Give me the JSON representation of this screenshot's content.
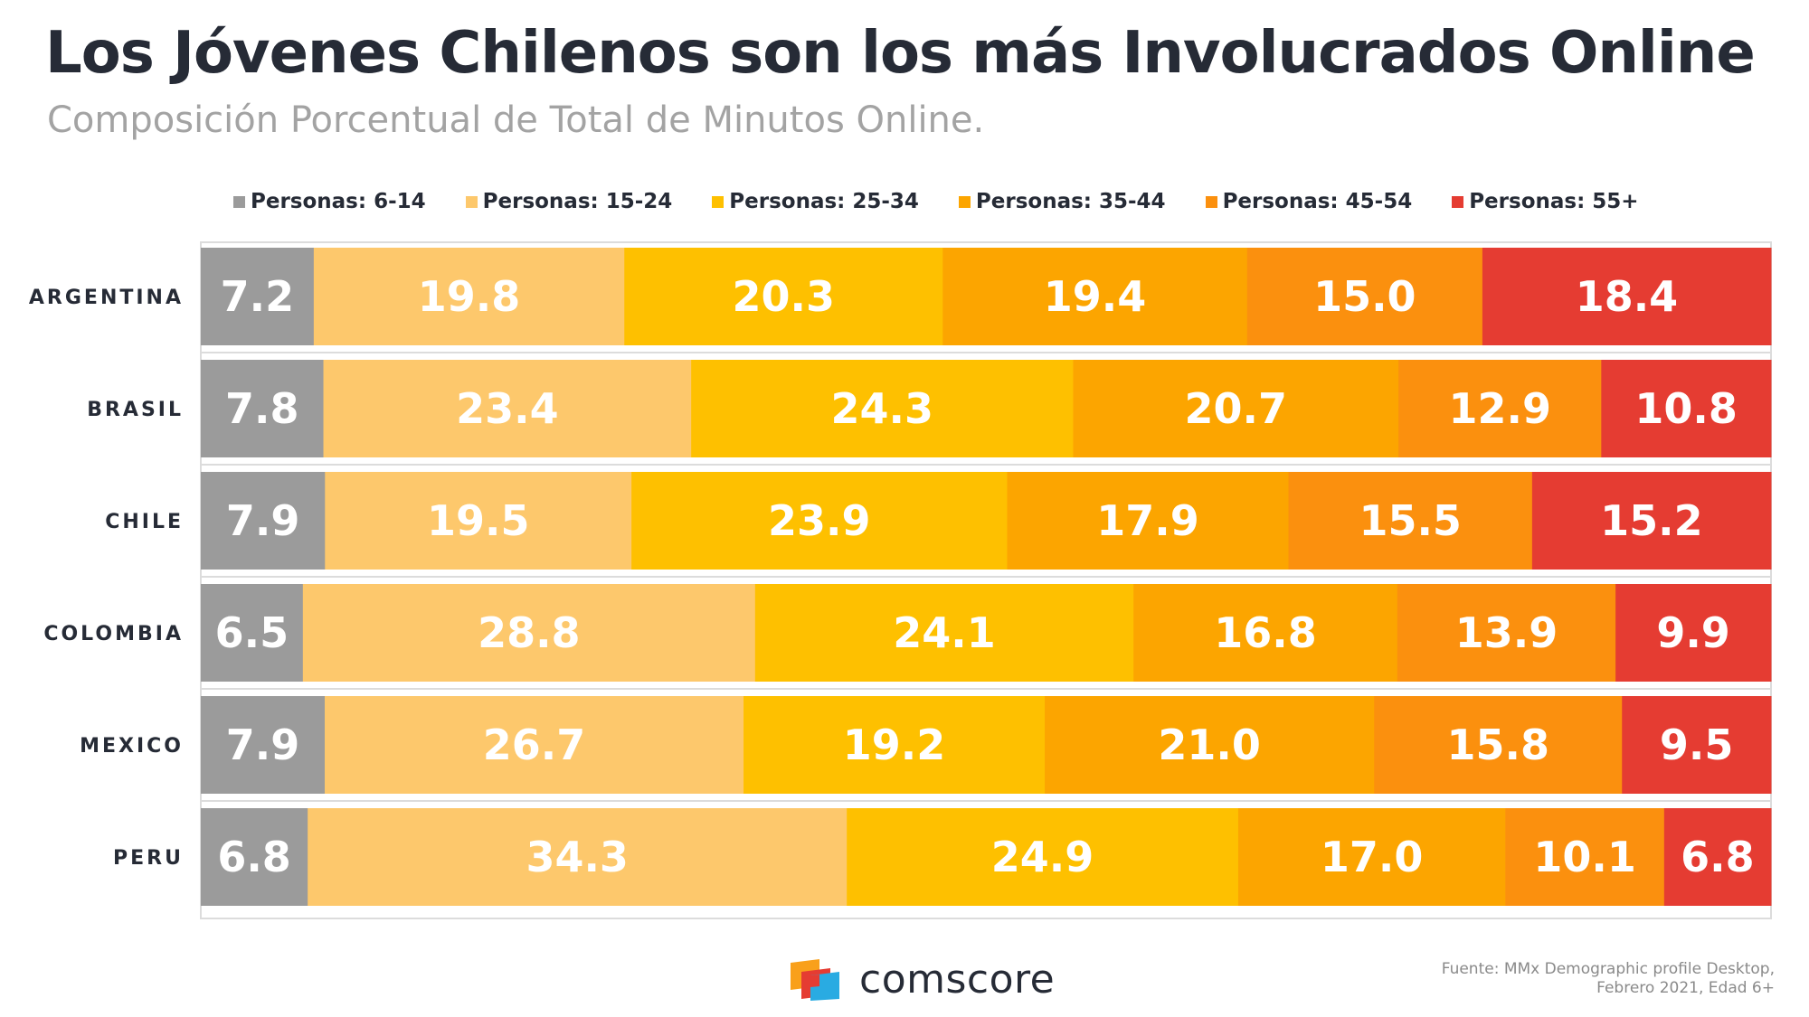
{
  "title": "Los Jóvenes Chilenos son los más Involucrados Online",
  "subtitle": "Composición Porcentual de Total de Minutos Online.",
  "footer": {
    "logo_text": "comscore",
    "source_line1": "Fuente: MMx Demographic profile Desktop,",
    "source_line2": "Febrero 2021, Edad 6+"
  },
  "chart_data": {
    "type": "bar",
    "orientation": "horizontal",
    "stacked": true,
    "categories": [
      "ARGENTINA",
      "BRASIL",
      "CHILE",
      "COLOMBIA",
      "MEXICO",
      "PERU"
    ],
    "legend_position": "top",
    "grid": false,
    "series": [
      {
        "name": "Personas: 6-14",
        "color": "#9b9b9b",
        "values": [
          7.2,
          7.8,
          7.9,
          6.5,
          7.9,
          6.8
        ]
      },
      {
        "name": "Personas: 15-24",
        "color": "#fdc86c",
        "values": [
          19.8,
          23.4,
          19.5,
          28.8,
          26.7,
          34.3
        ]
      },
      {
        "name": "Personas: 25-34",
        "color": "#fec000",
        "values": [
          20.3,
          24.3,
          23.9,
          24.1,
          19.2,
          24.9
        ]
      },
      {
        "name": "Personas: 35-44",
        "color": "#fca500",
        "values": [
          19.4,
          20.7,
          17.9,
          16.8,
          21.0,
          17.0
        ]
      },
      {
        "name": "Personas: 45-54",
        "color": "#fb900e",
        "values": [
          15.0,
          12.9,
          15.5,
          13.9,
          15.8,
          10.1
        ]
      },
      {
        "name": "Personas: 55+",
        "color": "#e53c32",
        "values": [
          18.4,
          10.8,
          15.2,
          9.9,
          9.5,
          6.8
        ]
      }
    ],
    "value_labels": [
      [
        "7.2",
        "19.8",
        "20.3",
        "19.4",
        "15.0",
        "18.4"
      ],
      [
        "7.8",
        "23.4",
        "24.3",
        "20.7",
        "12.9",
        "10.8"
      ],
      [
        "7.9",
        "19.5",
        "23.9",
        "17.9",
        "15.5",
        "15.2"
      ],
      [
        "6.5",
        "28.8",
        "24.1",
        "16.8",
        "13.9",
        "9.9"
      ],
      [
        "7.9",
        "26.7",
        "19.2",
        "21.0",
        "15.8",
        "9.5"
      ],
      [
        "6.8",
        "34.3",
        "24.9",
        "17.0",
        "10.1",
        "6.8"
      ]
    ]
  }
}
